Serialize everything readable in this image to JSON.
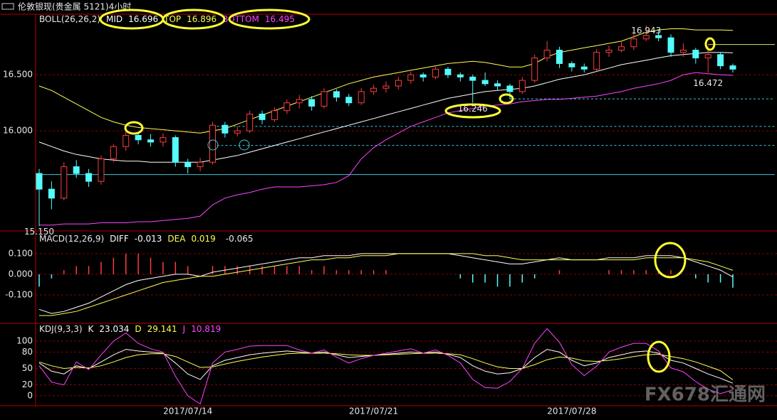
{
  "window_title": "伦敦银现(贵金属 5121)4小时",
  "watermark": "FX678汇通网",
  "chart_data": [
    {
      "type": "candlestick",
      "indicator": "BOLL(26,26,2)",
      "open": [
        15.62,
        15.48,
        15.4,
        15.68,
        15.62,
        15.55,
        15.75,
        15.86,
        15.96,
        15.92,
        15.9,
        15.94,
        15.72,
        15.68,
        15.72,
        16.05,
        15.98,
        16.0,
        16.15,
        16.1,
        16.18,
        16.25,
        16.28,
        16.22,
        16.35,
        16.3,
        16.25,
        16.35,
        16.38,
        16.4,
        16.45,
        16.5,
        16.48,
        16.55,
        16.5,
        16.48,
        16.45,
        16.42,
        16.4,
        16.35,
        16.45,
        16.65,
        16.72,
        16.6,
        16.57,
        16.55,
        16.7,
        16.72,
        16.75,
        16.82,
        16.85,
        16.83,
        16.7,
        16.72,
        16.65,
        16.68,
        16.58
      ],
      "high": [
        15.66,
        15.55,
        15.72,
        15.74,
        15.66,
        15.78,
        15.88,
        16.04,
        15.99,
        15.97,
        15.98,
        15.96,
        15.75,
        15.76,
        16.08,
        16.08,
        16.04,
        16.18,
        16.18,
        16.21,
        16.28,
        16.32,
        16.31,
        16.38,
        16.37,
        16.33,
        16.38,
        16.41,
        16.44,
        16.48,
        16.53,
        16.52,
        16.58,
        16.57,
        16.52,
        16.5,
        16.52,
        16.45,
        16.42,
        16.48,
        16.68,
        16.8,
        16.75,
        16.62,
        16.6,
        16.73,
        16.76,
        16.8,
        16.88,
        16.94,
        16.9,
        16.86,
        16.78,
        16.74,
        16.76,
        16.7,
        16.6
      ],
      "low": [
        15.15,
        15.3,
        15.38,
        15.58,
        15.5,
        15.52,
        15.72,
        15.82,
        15.88,
        15.86,
        15.86,
        15.68,
        15.62,
        15.64,
        15.7,
        15.94,
        15.95,
        15.98,
        16.06,
        16.08,
        16.15,
        16.2,
        16.18,
        16.2,
        16.26,
        16.22,
        16.23,
        16.32,
        16.34,
        16.37,
        16.42,
        16.44,
        16.46,
        16.47,
        16.44,
        16.25,
        16.4,
        16.36,
        16.28,
        16.33,
        16.43,
        16.62,
        16.56,
        16.53,
        16.52,
        16.53,
        16.66,
        16.7,
        16.72,
        16.8,
        16.8,
        16.66,
        16.66,
        16.6,
        16.52,
        16.55,
        16.52
      ],
      "close": [
        15.48,
        15.4,
        15.68,
        15.62,
        15.55,
        15.75,
        15.86,
        15.96,
        15.92,
        15.9,
        15.94,
        15.72,
        15.68,
        15.72,
        16.05,
        15.98,
        16.0,
        16.15,
        16.1,
        16.18,
        16.25,
        16.28,
        16.22,
        16.35,
        16.3,
        16.25,
        16.35,
        16.38,
        16.4,
        16.45,
        16.5,
        16.48,
        16.55,
        16.5,
        16.48,
        16.45,
        16.42,
        16.4,
        16.35,
        16.45,
        16.65,
        16.72,
        16.6,
        16.57,
        16.55,
        16.7,
        16.72,
        16.75,
        16.82,
        16.85,
        16.83,
        16.7,
        16.72,
        16.65,
        16.68,
        16.58,
        16.55
      ],
      "up_color": "#ff3c3c",
      "down_color": "#54fcfc",
      "series": [
        {
          "name": "MID",
          "color": "#ffffff",
          "values": [
            15.9,
            15.86,
            15.82,
            15.79,
            15.77,
            15.75,
            15.74,
            15.73,
            15.73,
            15.72,
            15.72,
            15.72,
            15.72,
            15.72,
            15.74,
            15.76,
            15.78,
            15.81,
            15.84,
            15.87,
            15.9,
            15.93,
            15.96,
            15.99,
            16.02,
            16.05,
            16.08,
            16.11,
            16.14,
            16.17,
            16.2,
            16.23,
            16.26,
            16.29,
            16.31,
            16.33,
            16.35,
            16.36,
            16.37,
            16.38,
            16.4,
            16.43,
            16.46,
            16.48,
            16.5,
            16.53,
            16.56,
            16.59,
            16.61,
            16.63,
            16.65,
            16.67,
            16.68,
            16.69,
            16.7,
            16.7,
            16.696
          ]
        },
        {
          "name": "TOP",
          "color": "#ffff55",
          "values": [
            16.4,
            16.36,
            16.3,
            16.24,
            16.18,
            16.12,
            16.08,
            16.05,
            16.03,
            16.02,
            16.01,
            16.0,
            15.99,
            15.98,
            16.0,
            16.02,
            16.06,
            16.1,
            16.14,
            16.18,
            16.22,
            16.26,
            16.3,
            16.34,
            16.38,
            16.42,
            16.45,
            16.48,
            16.5,
            16.52,
            16.54,
            16.56,
            16.58,
            16.6,
            16.61,
            16.62,
            16.61,
            16.59,
            16.57,
            16.57,
            16.6,
            16.66,
            16.7,
            16.72,
            16.74,
            16.76,
            16.78,
            16.8,
            16.84,
            16.88,
            16.9,
            16.91,
            16.91,
            16.9,
            16.9,
            16.9,
            16.896
          ]
        },
        {
          "name": "BOTTOM",
          "color": "#ff44ff",
          "values": [
            15.16,
            15.16,
            15.17,
            15.17,
            15.17,
            15.18,
            15.18,
            15.18,
            15.19,
            15.19,
            15.2,
            15.21,
            15.22,
            15.24,
            15.34,
            15.4,
            15.43,
            15.45,
            15.48,
            15.5,
            15.5,
            15.5,
            15.51,
            15.52,
            15.54,
            15.6,
            15.75,
            15.85,
            15.92,
            15.98,
            16.04,
            16.08,
            16.12,
            16.16,
            16.18,
            16.2,
            16.22,
            16.23,
            16.24,
            16.26,
            16.27,
            16.28,
            16.28,
            16.29,
            16.3,
            16.31,
            16.33,
            16.35,
            16.38,
            16.4,
            16.42,
            16.45,
            16.5,
            16.52,
            16.51,
            16.5,
            16.495
          ]
        }
      ],
      "hlines": [
        {
          "value": 16.285,
          "color": "#40c8d8",
          "dashed": true,
          "from": 38
        },
        {
          "value": 16.04,
          "color": "#40c8d8",
          "dashed": true,
          "from": 14
        },
        {
          "value": 15.87,
          "color": "#40c8d8",
          "dashed": true,
          "from": 14
        },
        {
          "value": 15.61,
          "color": "#40c8d8",
          "dashed": false,
          "from": 0
        },
        {
          "value": 16.77,
          "color": "#e0e060",
          "dashed": false,
          "from": 54
        }
      ],
      "annotations": [
        {
          "value": 16.943,
          "index": 49,
          "color": "#ff4040"
        },
        {
          "value": 16.472,
          "index": 54,
          "color": "#40d0e0"
        },
        {
          "value": 16.246,
          "index": 35,
          "color": "#40d0e0"
        },
        {
          "value": 15.15,
          "label": "15.150",
          "index": 0,
          "color": "#c8e8a0"
        }
      ],
      "ylim": [
        15.12,
        17.04
      ],
      "yticks": [
        {
          "value": 16,
          "label": "16.000"
        },
        {
          "value": 16.5,
          "label": "16.500"
        }
      ],
      "grid": true
    },
    {
      "type": "macd",
      "indicator": "MACD(12,26,9)",
      "series": [
        {
          "name": "DIFF",
          "color": "#ffffff",
          "values": [
            -0.17,
            -0.19,
            -0.18,
            -0.16,
            -0.14,
            -0.11,
            -0.08,
            -0.05,
            -0.03,
            -0.02,
            -0.01,
            0.0,
            0.0,
            -0.01,
            0.01,
            0.02,
            0.03,
            0.04,
            0.05,
            0.06,
            0.07,
            0.08,
            0.08,
            0.09,
            0.09,
            0.09,
            0.1,
            0.1,
            0.1,
            0.1,
            0.1,
            0.1,
            0.1,
            0.1,
            0.09,
            0.08,
            0.07,
            0.06,
            0.05,
            0.05,
            0.06,
            0.07,
            0.08,
            0.07,
            0.07,
            0.07,
            0.08,
            0.08,
            0.08,
            0.09,
            0.09,
            0.09,
            0.08,
            0.06,
            0.04,
            0.02,
            -0.013
          ]
        },
        {
          "name": "DEA",
          "color": "#ffff55",
          "values": [
            -0.2,
            -0.2,
            -0.19,
            -0.18,
            -0.16,
            -0.14,
            -0.12,
            -0.1,
            -0.08,
            -0.06,
            -0.04,
            -0.03,
            -0.02,
            -0.01,
            -0.01,
            0.0,
            0.01,
            0.02,
            0.03,
            0.04,
            0.05,
            0.06,
            0.07,
            0.07,
            0.08,
            0.08,
            0.09,
            0.09,
            0.09,
            0.1,
            0.1,
            0.1,
            0.1,
            0.1,
            0.1,
            0.1,
            0.09,
            0.09,
            0.08,
            0.07,
            0.07,
            0.07,
            0.07,
            0.07,
            0.07,
            0.07,
            0.07,
            0.07,
            0.07,
            0.08,
            0.08,
            0.08,
            0.08,
            0.07,
            0.06,
            0.04,
            0.019
          ]
        }
      ],
      "histogram": {
        "up_color": "#ff3c3c",
        "down_color": "#54fcfc",
        "values": [
          -0.06,
          -0.02,
          0.02,
          0.04,
          0.04,
          0.06,
          0.08,
          0.1,
          0.1,
          0.08,
          0.06,
          0.06,
          0.04,
          0.0,
          0.04,
          0.04,
          0.04,
          0.04,
          0.04,
          0.04,
          0.04,
          0.04,
          0.02,
          0.04,
          0.02,
          0.02,
          0.02,
          0.02,
          0.02,
          0.0,
          0.0,
          0.0,
          0.0,
          0.0,
          -0.02,
          -0.04,
          -0.04,
          -0.06,
          -0.06,
          -0.04,
          -0.02,
          0.0,
          0.02,
          0.0,
          0.0,
          0.0,
          0.02,
          0.02,
          0.02,
          0.02,
          0.02,
          0.02,
          0.0,
          -0.02,
          -0.04,
          -0.04,
          -0.065
        ]
      },
      "ylim": [
        -0.231,
        0.203
      ],
      "yticks": [
        {
          "value": -0.1,
          "label": "-0.100"
        },
        {
          "value": 0,
          "label": "0.000"
        },
        {
          "value": 0.1,
          "label": "0.100"
        }
      ],
      "grid": true
    },
    {
      "type": "line",
      "indicator": "KDJ(9,3,3)",
      "categories": [
        null,
        null,
        null,
        null,
        null,
        null,
        null,
        null,
        null,
        null,
        null,
        null,
        "2017/07/14",
        null,
        null,
        null,
        null,
        null,
        null,
        null,
        null,
        null,
        null,
        null,
        null,
        null,
        null,
        "2017/07/21",
        null,
        null,
        null,
        null,
        null,
        null,
        null,
        null,
        null,
        null,
        null,
        null,
        null,
        null,
        null,
        "2017/07/28",
        null,
        null,
        null,
        null,
        null,
        null,
        null,
        null,
        null,
        null,
        null,
        null,
        null
      ],
      "series": [
        {
          "name": "K",
          "color": "#ffffff",
          "values": [
            60,
            45,
            40,
            55,
            50,
            62,
            75,
            85,
            82,
            80,
            78,
            60,
            40,
            30,
            55,
            65,
            70,
            75,
            78,
            80,
            82,
            80,
            78,
            80,
            75,
            70,
            72,
            74,
            76,
            78,
            80,
            78,
            80,
            76,
            70,
            55,
            45,
            40,
            42,
            50,
            70,
            85,
            80,
            65,
            55,
            60,
            70,
            75,
            80,
            82,
            78,
            65,
            60,
            50,
            40,
            32,
            23.034
          ]
        },
        {
          "name": "D",
          "color": "#ffff55",
          "values": [
            62,
            55,
            50,
            52,
            51,
            55,
            62,
            70,
            75,
            77,
            77,
            72,
            62,
            52,
            53,
            58,
            63,
            67,
            71,
            74,
            77,
            78,
            78,
            78,
            77,
            75,
            74,
            74,
            75,
            76,
            77,
            78,
            78,
            77,
            75,
            68,
            60,
            53,
            50,
            50,
            57,
            66,
            71,
            69,
            64,
            63,
            65,
            68,
            72,
            75,
            76,
            72,
            68,
            62,
            54,
            46,
            29.141
          ]
        },
        {
          "name": "J",
          "color": "#ff44ff",
          "values": [
            55,
            25,
            20,
            62,
            48,
            75,
            100,
            115,
            96,
            86,
            80,
            36,
            0,
            -15,
            60,
            80,
            85,
            91,
            92,
            92,
            92,
            84,
            78,
            84,
            71,
            60,
            68,
            74,
            78,
            82,
            86,
            78,
            84,
            74,
            60,
            30,
            15,
            14,
            26,
            50,
            96,
            123,
            98,
            57,
            37,
            54,
            80,
            89,
            96,
            96,
            82,
            51,
            44,
            26,
            12,
            4,
            10.819
          ]
        }
      ],
      "ylim": [
        -17,
        130
      ],
      "yticks": [
        0,
        20,
        50,
        80,
        100
      ],
      "grid": true
    }
  ]
}
